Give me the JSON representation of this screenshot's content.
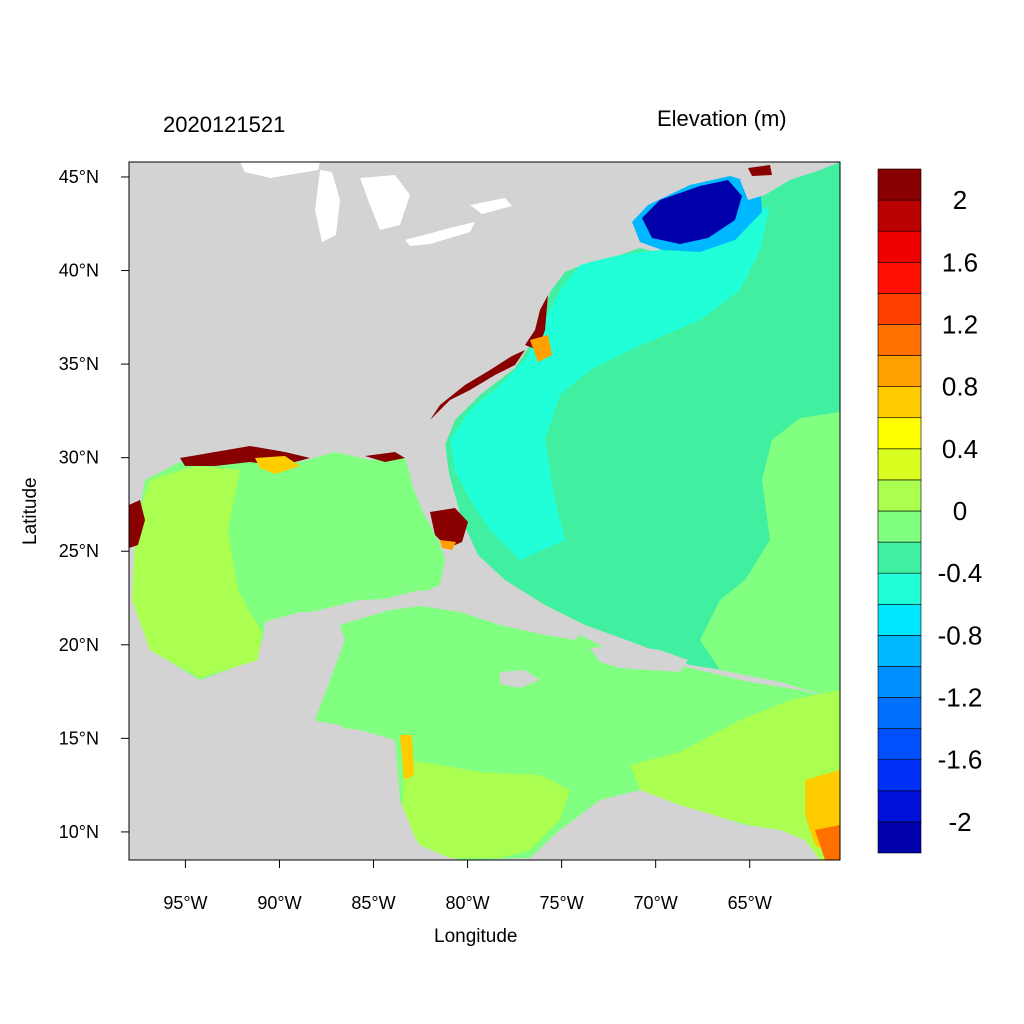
{
  "figure": {
    "left_title": "2020121521",
    "right_title": "Elevation (m)",
    "x_label": "Longitude",
    "y_label": "Latitude"
  },
  "axes": {
    "lon_range": [
      -98,
      -60.2
    ],
    "lat_range": [
      8.5,
      45.8
    ],
    "lon_ticks": [
      {
        "value": -95,
        "label": "95°W"
      },
      {
        "value": -90,
        "label": "90°W"
      },
      {
        "value": -85,
        "label": "85°W"
      },
      {
        "value": -80,
        "label": "80°W"
      },
      {
        "value": -75,
        "label": "75°W"
      },
      {
        "value": -70,
        "label": "70°W"
      },
      {
        "value": -65,
        "label": "65°W"
      }
    ],
    "lat_ticks": [
      {
        "value": 45,
        "label": "45°N"
      },
      {
        "value": 40,
        "label": "40°N"
      },
      {
        "value": 35,
        "label": "35°N"
      },
      {
        "value": 30,
        "label": "30°N"
      },
      {
        "value": 25,
        "label": "25°N"
      },
      {
        "value": 20,
        "label": "20°N"
      },
      {
        "value": 15,
        "label": "15°N"
      },
      {
        "value": 10,
        "label": "10°N"
      }
    ]
  },
  "colorbar": {
    "colors": [
      "#0000aa",
      "#0010d8",
      "#0030f8",
      "#0050ff",
      "#0070ff",
      "#0090ff",
      "#00b8ff",
      "#00e8ff",
      "#20ffd8",
      "#40f0a0",
      "#80ff80",
      "#aaff50",
      "#d8ff20",
      "#ffff00",
      "#ffcc00",
      "#ffa000",
      "#ff7000",
      "#ff4000",
      "#ff1000",
      "#ee0000",
      "#bb0000",
      "#880000"
    ],
    "labels": [
      "-2",
      "-1.6",
      "-1.2",
      "-0.8",
      "-0.4",
      "0",
      "0.4",
      "0.8",
      "1.2",
      "1.6",
      "2"
    ]
  },
  "colors": {
    "land": "#d3d3d3",
    "lakes": "#ffffff",
    "gulf": "#80ff80",
    "gulf_west": "#aaff50",
    "atlantic": "#40f0a0",
    "shelf": "#20ffd8",
    "surge_high": "#880000",
    "surge_low": "#0000aa"
  }
}
